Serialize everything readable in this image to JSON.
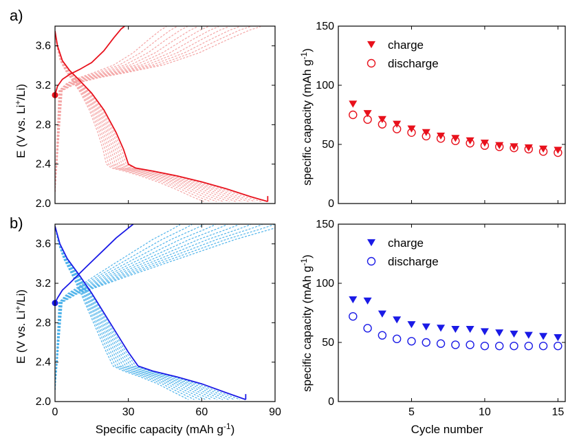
{
  "panel_labels": [
    "a)",
    "b)"
  ],
  "chart_data": [
    {
      "type": "line",
      "panel": "a)",
      "xlabel": "",
      "ylabel": "E (V vs. Li+/Li)",
      "xlim": [
        0,
        90
      ],
      "ylim": [
        2.0,
        3.8
      ],
      "yticks": [
        "2.0",
        "2.4",
        "2.8",
        "3.2",
        "3.6"
      ],
      "first_cycle_color": "#e8111c",
      "later_cycle_color": "#f4a6a6",
      "first_charge": {
        "x": [
          0,
          1,
          3,
          6,
          10,
          15,
          20,
          24,
          27,
          28.5
        ],
        "y": [
          3.1,
          3.19,
          3.26,
          3.31,
          3.36,
          3.43,
          3.55,
          3.68,
          3.77,
          3.8
        ]
      },
      "first_discharge": {
        "x": [
          0,
          1,
          3,
          6,
          10,
          15,
          20,
          25,
          28,
          30,
          33,
          40,
          50,
          60,
          70,
          80,
          87
        ],
        "y": [
          3.75,
          3.6,
          3.45,
          3.35,
          3.25,
          3.12,
          2.95,
          2.72,
          2.55,
          2.4,
          2.36,
          2.33,
          2.28,
          2.22,
          2.15,
          2.07,
          2.02
        ]
      },
      "start_marker": {
        "x": 0,
        "y": 3.1
      }
    },
    {
      "type": "scatter",
      "panel": "a)",
      "xlabel": "",
      "ylabel": "specific capacity (mAh g-1)",
      "xlim": [
        0,
        15.5
      ],
      "ylim": [
        0,
        150
      ],
      "yticks": [
        "0",
        "50",
        "100",
        "150"
      ],
      "color": "#e8111c",
      "x": [
        1,
        2,
        3,
        4,
        5,
        6,
        7,
        8,
        9,
        10,
        11,
        12,
        13,
        14,
        15
      ],
      "series": [
        {
          "name": "charge",
          "marker": "triangle-down",
          "values": [
            84,
            76,
            71,
            67,
            63,
            60,
            57,
            55,
            53,
            51,
            49,
            48,
            47,
            46,
            45
          ]
        },
        {
          "name": "discharge",
          "marker": "open-circle",
          "values": [
            75,
            71,
            67,
            63,
            60,
            57,
            55,
            53,
            51,
            49,
            48,
            47,
            46,
            44,
            43
          ]
        }
      ]
    },
    {
      "type": "line",
      "panel": "b)",
      "xlabel": "Specific capacity (mAh g",
      "ylabel": "E (V vs. Li+/Li)",
      "xlim": [
        0,
        90
      ],
      "ylim": [
        2.0,
        3.8
      ],
      "xticks": [
        "0",
        "30",
        "60",
        "90"
      ],
      "yticks": [
        "2.0",
        "2.4",
        "2.8",
        "3.2",
        "3.6"
      ],
      "first_cycle_color": "#1a1ae6",
      "later_cycle_color": "#4fb3ea",
      "first_charge": {
        "x": [
          0,
          1,
          3,
          6,
          10,
          15,
          20,
          25,
          30,
          32
        ],
        "y": [
          3.0,
          3.05,
          3.13,
          3.2,
          3.3,
          3.42,
          3.54,
          3.66,
          3.76,
          3.8
        ]
      },
      "first_discharge": {
        "x": [
          0,
          2,
          5,
          10,
          15,
          20,
          25,
          30,
          34,
          40,
          50,
          60,
          70,
          78
        ],
        "y": [
          3.78,
          3.6,
          3.45,
          3.28,
          3.1,
          2.9,
          2.7,
          2.5,
          2.36,
          2.31,
          2.25,
          2.18,
          2.09,
          2.02
        ]
      },
      "start_marker": {
        "x": 0,
        "y": 3.0
      }
    },
    {
      "type": "scatter",
      "panel": "b)",
      "xlabel": "Cycle number",
      "ylabel": "specific capacity (mAh g-1)",
      "xlim": [
        0,
        15.5
      ],
      "ylim": [
        0,
        150
      ],
      "xticks": [
        "5",
        "10",
        "15"
      ],
      "yticks": [
        "0",
        "50",
        "100",
        "150"
      ],
      "color": "#1a1ae6",
      "x": [
        1,
        2,
        3,
        4,
        5,
        6,
        7,
        8,
        9,
        10,
        11,
        12,
        13,
        14,
        15
      ],
      "series": [
        {
          "name": "charge",
          "marker": "triangle-down",
          "values": [
            86,
            85,
            74,
            69,
            65,
            63,
            62,
            61,
            61,
            59,
            58,
            57,
            56,
            55,
            54
          ]
        },
        {
          "name": "discharge",
          "marker": "open-circle",
          "values": [
            72,
            62,
            56,
            53,
            51,
            50,
            49,
            48,
            48,
            47,
            47,
            47,
            47,
            47,
            47
          ]
        }
      ]
    }
  ],
  "axis_text": {
    "e_label_main": "E (V vs. Li",
    "e_label_sup": "+",
    "e_label_end": "/Li)",
    "cap_label_main": "specific capacity (mAh g",
    "cap_label_sup": "-1",
    "cap_label_end": ")",
    "bottom_left_main": "Specific capacity (mAh g",
    "bottom_left_sup": "-1",
    "bottom_left_end": ")",
    "bottom_right": "Cycle number"
  }
}
